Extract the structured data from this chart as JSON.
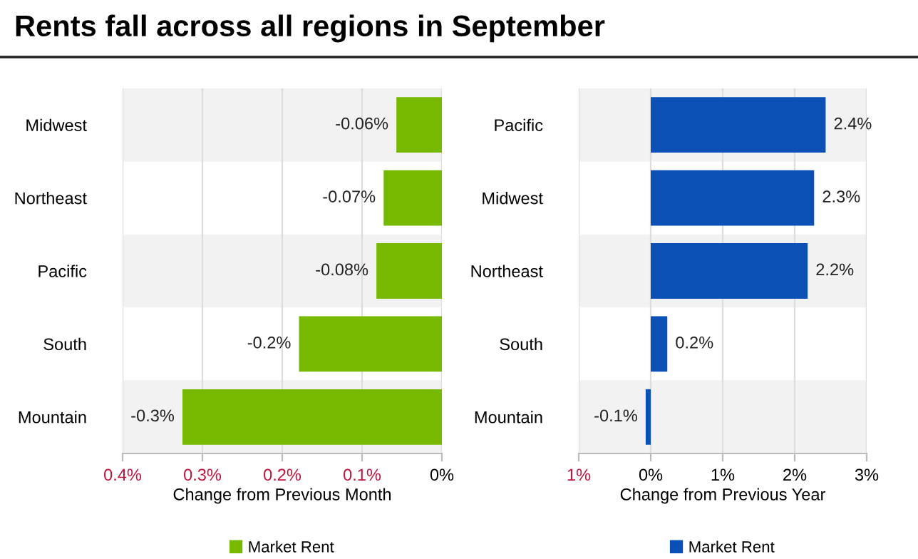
{
  "chart_data": [
    {
      "type": "bar",
      "title": "Rents fall across all regions in September",
      "orientation": "horizontal",
      "categories": [
        "Midwest",
        "Northeast",
        "Pacific",
        "South",
        "Mountain"
      ],
      "series": [
        {
          "name": "Market Rent",
          "color": "#77b900",
          "values": [
            -0.057,
            -0.073,
            -0.082,
            -0.179,
            -0.325
          ],
          "value_labels": [
            "-0.06%",
            "-0.07%",
            "-0.08%",
            "-0.2%",
            "-0.3%"
          ]
        }
      ],
      "xlim": [
        -0.4,
        0
      ],
      "xticks": [
        {
          "value": -0.4,
          "label": "0.4%"
        },
        {
          "value": -0.3,
          "label": "0.3%"
        },
        {
          "value": -0.2,
          "label": "0.2%"
        },
        {
          "value": -0.1,
          "label": "0.1%"
        },
        {
          "value": 0,
          "label": "0%"
        }
      ],
      "xlabel": "Change from Previous Month",
      "grid": "x",
      "legend": "bottom"
    },
    {
      "type": "bar",
      "orientation": "horizontal",
      "categories": [
        "Pacific",
        "Midwest",
        "Northeast",
        "South",
        "Mountain"
      ],
      "series": [
        {
          "name": "Market Rent",
          "color": "#0b50b4",
          "values": [
            2.43,
            2.27,
            2.18,
            0.23,
            -0.07
          ],
          "value_labels": [
            "2.4%",
            "2.3%",
            "2.2%",
            "0.2%",
            "-0.1%"
          ]
        }
      ],
      "xlim": [
        -1,
        3
      ],
      "xticks": [
        {
          "value": -1,
          "label": "1%"
        },
        {
          "value": 0,
          "label": "0%"
        },
        {
          "value": 1,
          "label": "1%"
        },
        {
          "value": 2,
          "label": "2%"
        },
        {
          "value": 3,
          "label": "3%"
        }
      ],
      "xlabel": "Change from Previous Year",
      "grid": "x",
      "legend": "bottom"
    }
  ]
}
